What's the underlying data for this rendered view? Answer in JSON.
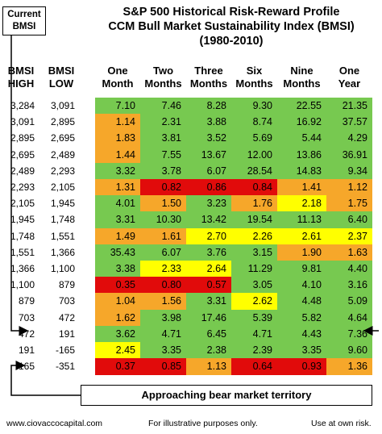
{
  "title": {
    "line1": "S&P 500 Historical Risk-Reward Profile",
    "line2": "CCM Bull Market Sustainability Index (BMSI)",
    "line3": "(1980-2010)"
  },
  "current_label": {
    "line1": "Current",
    "line2": "BMSI"
  },
  "bear_label": "Approaching bear market territory",
  "footer": {
    "website": "www.ciovaccocapital.com",
    "disclaimer": "For illustrative purposes only.",
    "risk": "Use at own risk."
  },
  "colors": {
    "green": "#77c950",
    "orange": "#f6a72a",
    "yellow": "#ffff00",
    "red": "#e10b0b"
  },
  "chart_data": {
    "type": "table",
    "row_headers": [
      {
        "line1": "BMSI",
        "line2": "HIGH"
      },
      {
        "line1": "BMSI",
        "line2": "LOW"
      }
    ],
    "columns": [
      {
        "line1": "One",
        "line2": "Month"
      },
      {
        "line1": "Two",
        "line2": "Months"
      },
      {
        "line1": "Three",
        "line2": "Months"
      },
      {
        "line1": "Six",
        "line2": "Months"
      },
      {
        "line1": "Nine",
        "line2": "Months"
      },
      {
        "line1": "One",
        "line2": "Year"
      }
    ],
    "current_row_index": 15,
    "rows": [
      {
        "high": "3,284",
        "low": "3,091",
        "values": [
          "7.10",
          "7.46",
          "8.28",
          "9.30",
          "22.55",
          "21.35"
        ],
        "colors": [
          "green",
          "green",
          "green",
          "green",
          "green",
          "green"
        ]
      },
      {
        "high": "3,091",
        "low": "2,895",
        "values": [
          "1.14",
          "2.31",
          "3.88",
          "8.74",
          "16.92",
          "37.57"
        ],
        "colors": [
          "orange",
          "green",
          "green",
          "green",
          "green",
          "green"
        ]
      },
      {
        "high": "2,895",
        "low": "2,695",
        "values": [
          "1.83",
          "3.81",
          "3.52",
          "5.69",
          "5.44",
          "4.29"
        ],
        "colors": [
          "orange",
          "green",
          "green",
          "green",
          "green",
          "green"
        ]
      },
      {
        "high": "2,695",
        "low": "2,489",
        "values": [
          "1.44",
          "7.55",
          "13.67",
          "12.00",
          "13.86",
          "36.91"
        ],
        "colors": [
          "orange",
          "green",
          "green",
          "green",
          "green",
          "green"
        ]
      },
      {
        "high": "2,489",
        "low": "2,293",
        "values": [
          "3.32",
          "3.78",
          "6.07",
          "28.54",
          "14.83",
          "9.34"
        ],
        "colors": [
          "green",
          "green",
          "green",
          "green",
          "green",
          "green"
        ]
      },
      {
        "high": "2,293",
        "low": "2,105",
        "values": [
          "1.31",
          "0.82",
          "0.86",
          "0.84",
          "1.41",
          "1.12"
        ],
        "colors": [
          "orange",
          "red",
          "red",
          "red",
          "orange",
          "orange"
        ]
      },
      {
        "high": "2,105",
        "low": "1,945",
        "values": [
          "4.01",
          "1.50",
          "3.23",
          "1.76",
          "2.18",
          "1.75"
        ],
        "colors": [
          "green",
          "orange",
          "green",
          "orange",
          "yellow",
          "orange"
        ]
      },
      {
        "high": "1,945",
        "low": "1,748",
        "values": [
          "3.31",
          "10.30",
          "13.42",
          "19.54",
          "11.13",
          "6.40"
        ],
        "colors": [
          "green",
          "green",
          "green",
          "green",
          "green",
          "green"
        ]
      },
      {
        "high": "1,748",
        "low": "1,551",
        "values": [
          "1.49",
          "1.61",
          "2.70",
          "2.26",
          "2.61",
          "2.37"
        ],
        "colors": [
          "orange",
          "orange",
          "yellow",
          "yellow",
          "yellow",
          "yellow"
        ]
      },
      {
        "high": "1,551",
        "low": "1,366",
        "values": [
          "35.43",
          "6.07",
          "3.76",
          "3.15",
          "1.90",
          "1.63"
        ],
        "colors": [
          "green",
          "green",
          "green",
          "green",
          "orange",
          "orange"
        ]
      },
      {
        "high": "1,366",
        "low": "1,100",
        "values": [
          "3.38",
          "2.33",
          "2.64",
          "11.29",
          "9.81",
          "4.40"
        ],
        "colors": [
          "green",
          "yellow",
          "yellow",
          "green",
          "green",
          "green"
        ]
      },
      {
        "high": "1,100",
        "low": "879",
        "values": [
          "0.35",
          "0.80",
          "0.57",
          "3.05",
          "4.10",
          "3.16"
        ],
        "colors": [
          "red",
          "red",
          "red",
          "green",
          "green",
          "green"
        ]
      },
      {
        "high": "879",
        "low": "703",
        "values": [
          "1.04",
          "1.56",
          "3.31",
          "2.62",
          "4.48",
          "5.09"
        ],
        "colors": [
          "orange",
          "orange",
          "green",
          "yellow",
          "green",
          "green"
        ]
      },
      {
        "high": "703",
        "low": "472",
        "values": [
          "1.62",
          "3.98",
          "17.46",
          "5.39",
          "5.82",
          "4.64"
        ],
        "colors": [
          "orange",
          "green",
          "green",
          "green",
          "green",
          "green"
        ]
      },
      {
        "high": "472",
        "low": "191",
        "values": [
          "3.62",
          "4.71",
          "6.45",
          "4.71",
          "4.43",
          "7.36"
        ],
        "colors": [
          "green",
          "green",
          "green",
          "green",
          "green",
          "green"
        ]
      },
      {
        "high": "191",
        "low": "-165",
        "values": [
          "2.45",
          "3.35",
          "2.38",
          "2.39",
          "3.35",
          "9.60"
        ],
        "colors": [
          "yellow",
          "green",
          "green",
          "green",
          "green",
          "green"
        ]
      },
      {
        "high": "-165",
        "low": "-351",
        "values": [
          "0.37",
          "0.85",
          "1.13",
          "0.64",
          "0.93",
          "1.36"
        ],
        "colors": [
          "red",
          "red",
          "orange",
          "red",
          "red",
          "orange"
        ]
      }
    ]
  }
}
